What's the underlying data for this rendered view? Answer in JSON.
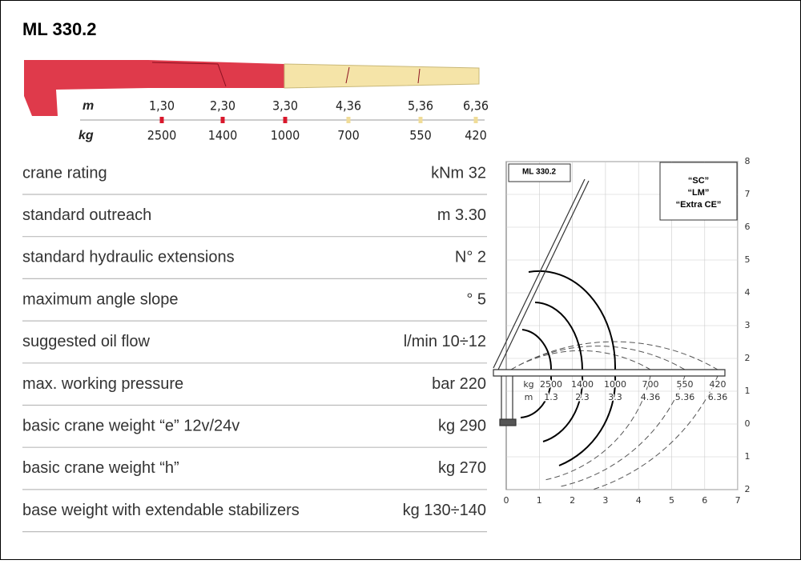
{
  "header": {
    "title": "ML 330.2"
  },
  "boom": {
    "m_unit": "m",
    "kg_unit": "kg",
    "reach": [
      "1,30",
      "2,30",
      "3,30",
      "4,36",
      "5,36",
      "6,36"
    ],
    "loads": [
      "2500",
      "1400",
      "1000",
      "700",
      "550",
      "420"
    ]
  },
  "table": {
    "rows": [
      [
        "crane rating",
        "kNm 32"
      ],
      [
        "standard outreach",
        "m 3.30"
      ],
      [
        "standard hydraulic extensions",
        "N° 2"
      ],
      [
        "maximum angle slope",
        "° 5"
      ],
      [
        "suggested oil flow",
        "l/min 10÷12"
      ],
      [
        "max. working pressure",
        "bar 220"
      ],
      [
        "basic crane weight “e” 12v/24v",
        "kg 290"
      ],
      [
        "basic crane weight “h”",
        "kg 270"
      ],
      [
        "base weight with extendable stabilizers",
        "kg 130÷140"
      ]
    ]
  },
  "diagram": {
    "title": "ML 330.2",
    "versions": [
      "“SC”",
      "“LM”",
      "“Extra CE”"
    ],
    "y_labels": [
      "8",
      "7",
      "6",
      "5",
      "4",
      "3",
      "2",
      "1",
      "0",
      "1",
      "2"
    ],
    "x_labels": [
      "0",
      "1",
      "2",
      "3",
      "4",
      "5",
      "6",
      "7"
    ],
    "kg_unit": "kg",
    "m_unit": "m",
    "loads": [
      "2500",
      "1400",
      "1000",
      "700",
      "550",
      "420"
    ],
    "reach": [
      "1.3",
      "2.3",
      "3.3",
      "4.36",
      "5.36",
      "6.36"
    ]
  }
}
